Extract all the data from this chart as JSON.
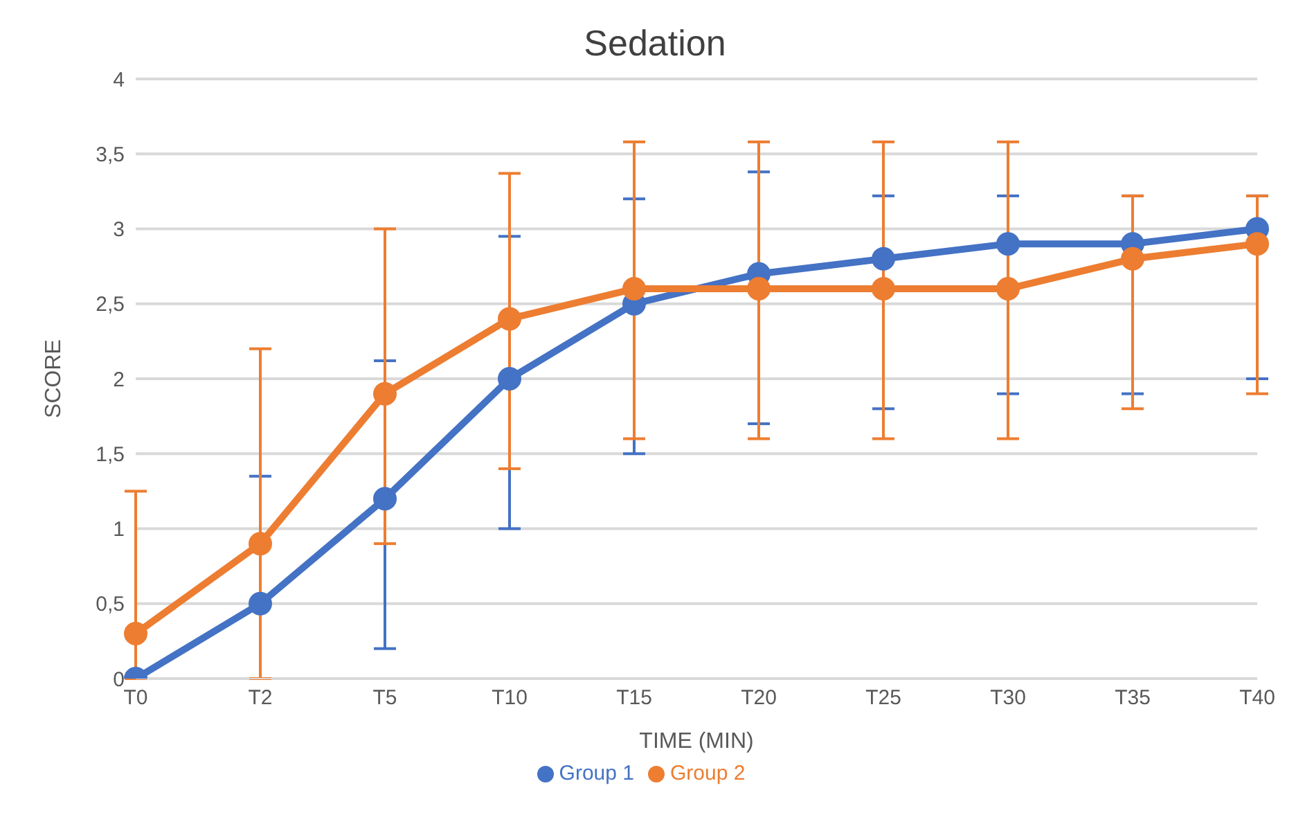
{
  "chart_data": {
    "type": "line",
    "title": "Sedation",
    "xlabel": "TIME (MIN)",
    "ylabel": "SCORE",
    "categories": [
      "T0",
      "T2",
      "T5",
      "T10",
      "T15",
      "T20",
      "T25",
      "T30",
      "T35",
      "T40"
    ],
    "series": [
      {
        "name": "Group 1",
        "color": "#4472c4",
        "values": [
          0,
          0.5,
          1.2,
          2,
          2.5,
          2.7,
          2.8,
          2.9,
          2.9,
          3
        ],
        "errors": [
          null,
          [
            0.5,
            1.35
          ],
          [
            0.2,
            2.12
          ],
          [
            1,
            2.95
          ],
          [
            1.5,
            3.2
          ],
          [
            1.7,
            3.38
          ],
          [
            1.8,
            3.22
          ],
          [
            1.9,
            3.22
          ],
          [
            1.9,
            3.22
          ],
          [
            2,
            3.22
          ]
        ]
      },
      {
        "name": "Group 2",
        "color": "#ed7d31",
        "values": [
          0.3,
          0.9,
          1.9,
          2.4,
          2.6,
          2.6,
          2.6,
          2.6,
          2.8,
          2.9
        ],
        "errors": [
          [
            0,
            1.25
          ],
          [
            0,
            2.2
          ],
          [
            0.9,
            3
          ],
          [
            1.4,
            3.37
          ],
          [
            1.6,
            3.58
          ],
          [
            1.6,
            3.58
          ],
          [
            1.6,
            3.58
          ],
          [
            1.6,
            3.58
          ],
          [
            1.8,
            3.22
          ],
          [
            1.9,
            3.22
          ]
        ]
      }
    ],
    "ylim": [
      0,
      4
    ],
    "yticks": [
      0,
      {
        "value": 0.5,
        "label": "0,5"
      },
      1,
      {
        "value": 1.5,
        "label": "1,5"
      },
      2,
      {
        "value": 2.5,
        "label": "2,5"
      },
      3,
      {
        "value": 3.5,
        "label": "3,5"
      },
      4
    ],
    "grid": "y",
    "legend": "bottom",
    "marker": "circle",
    "line_style": "solid"
  }
}
